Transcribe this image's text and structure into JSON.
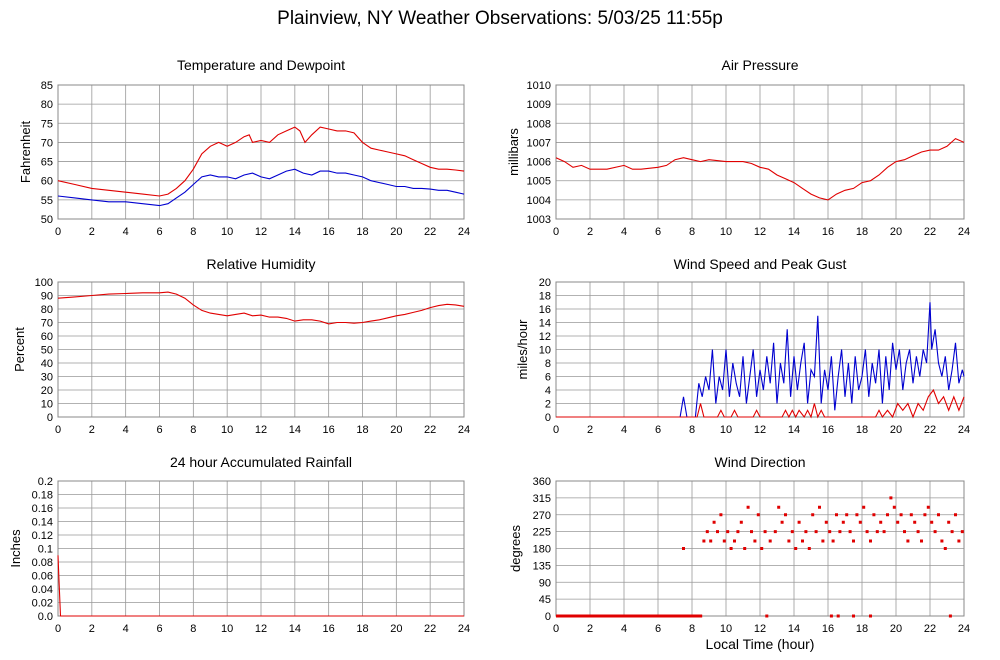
{
  "title": "Plainview, NY Weather Observations: 5/03/25 11:55p",
  "x_axis_caption": "Local Time (hour)",
  "colors": {
    "red": "#e00000",
    "blue": "#0000d0",
    "grid": "#999999",
    "frame": "#888888"
  },
  "chart_data": [
    {
      "id": "temp",
      "type": "line",
      "title": "Temperature and Dewpoint",
      "ylabel": "Fahrenheit",
      "xlabel": "",
      "xlim": [
        0,
        24
      ],
      "ylim": [
        50,
        85
      ],
      "xticks": [
        0,
        2,
        4,
        6,
        8,
        10,
        12,
        14,
        16,
        18,
        20,
        22,
        24
      ],
      "yticks": [
        "50",
        "55",
        "60",
        "65",
        "70",
        "75",
        "80",
        "85"
      ],
      "grid": true,
      "series": [
        {
          "color": "red",
          "x": [
            0,
            1,
            2,
            3,
            4,
            5,
            6,
            6.5,
            7,
            7.5,
            8,
            8.5,
            9,
            9.5,
            10,
            10.5,
            11,
            11.3,
            11.5,
            12,
            12.5,
            13,
            13.5,
            14,
            14.3,
            14.6,
            15,
            15.5,
            16,
            16.5,
            17,
            17.5,
            18,
            18.5,
            19,
            19.5,
            20,
            20.5,
            21,
            21.5,
            22,
            22.5,
            23,
            23.5,
            24
          ],
          "values": [
            60,
            59,
            58,
            57.5,
            57,
            56.5,
            56,
            56.5,
            58,
            60,
            63,
            67,
            69,
            70,
            69,
            70,
            71.5,
            72,
            70,
            70.5,
            70,
            72,
            73,
            74,
            73,
            70,
            72,
            74,
            73.5,
            73,
            73,
            72.5,
            70,
            68.5,
            68,
            67.5,
            67,
            66.5,
            65.5,
            64.5,
            63.5,
            63,
            63,
            62.8,
            62.5
          ]
        },
        {
          "color": "blue",
          "x": [
            0,
            1,
            2,
            3,
            4,
            5,
            6,
            6.5,
            7,
            7.5,
            8,
            8.5,
            9,
            9.5,
            10,
            10.5,
            11,
            11.5,
            12,
            12.5,
            13,
            13.5,
            14,
            14.5,
            15,
            15.5,
            16,
            16.5,
            17,
            17.5,
            18,
            18.5,
            19,
            19.5,
            20,
            20.5,
            21,
            21.5,
            22,
            22.5,
            23,
            23.5,
            24
          ],
          "values": [
            56,
            55.5,
            55,
            54.5,
            54.5,
            54,
            53.5,
            54,
            55.5,
            57,
            59,
            61,
            61.5,
            61,
            61,
            60.5,
            61.5,
            62,
            61,
            60.5,
            61.5,
            62.5,
            63,
            62,
            61.5,
            62.5,
            62.5,
            62,
            62,
            61.5,
            61,
            60,
            59.5,
            59,
            58.5,
            58.5,
            58,
            58,
            57.8,
            57.5,
            57.5,
            57,
            56.5
          ]
        }
      ]
    },
    {
      "id": "pressure",
      "type": "line",
      "title": "Air Pressure",
      "ylabel": "millibars",
      "xlabel": "",
      "xlim": [
        0,
        24
      ],
      "ylim": [
        1003,
        1010
      ],
      "xticks": [
        0,
        2,
        4,
        6,
        8,
        10,
        12,
        14,
        16,
        18,
        20,
        22,
        24
      ],
      "yticks": [
        "1003",
        "1004",
        "1005",
        "1006",
        "1007",
        "1008",
        "1009",
        "1010"
      ],
      "grid": true,
      "series": [
        {
          "color": "red",
          "x": [
            0,
            0.5,
            1,
            1.5,
            2,
            3,
            4,
            4.5,
            5,
            6,
            6.5,
            7,
            7.5,
            8,
            8.5,
            9,
            10,
            11,
            11.5,
            12,
            12.5,
            13,
            13.5,
            14,
            14.5,
            15,
            15.5,
            16,
            16.5,
            17,
            17.5,
            18,
            18.5,
            19,
            19.5,
            20,
            20.5,
            21,
            21.5,
            22,
            22.5,
            23,
            23.5,
            24
          ],
          "values": [
            1006.2,
            1006,
            1005.7,
            1005.8,
            1005.6,
            1005.6,
            1005.8,
            1005.6,
            1005.6,
            1005.7,
            1005.8,
            1006.1,
            1006.2,
            1006.1,
            1006,
            1006.1,
            1006,
            1006,
            1005.9,
            1005.7,
            1005.6,
            1005.3,
            1005.1,
            1004.9,
            1004.6,
            1004.3,
            1004.1,
            1004,
            1004.3,
            1004.5,
            1004.6,
            1004.9,
            1005,
            1005.3,
            1005.7,
            1006,
            1006.1,
            1006.3,
            1006.5,
            1006.6,
            1006.6,
            1006.8,
            1007.2,
            1007
          ]
        }
      ]
    },
    {
      "id": "humidity",
      "type": "line",
      "title": "Relative Humidity",
      "ylabel": "Percent",
      "xlabel": "",
      "xlim": [
        0,
        24
      ],
      "ylim": [
        0,
        100
      ],
      "xticks": [
        0,
        2,
        4,
        6,
        8,
        10,
        12,
        14,
        16,
        18,
        20,
        22,
        24
      ],
      "yticks": [
        "0",
        "10",
        "20",
        "30",
        "40",
        "50",
        "60",
        "70",
        "80",
        "90",
        "100"
      ],
      "grid": true,
      "series": [
        {
          "color": "red",
          "x": [
            0,
            1,
            2,
            3,
            4,
            5,
            6,
            6.5,
            7,
            7.5,
            8,
            8.5,
            9,
            9.5,
            10,
            10.5,
            11,
            11.5,
            12,
            12.5,
            13,
            13.5,
            14,
            14.5,
            15,
            15.5,
            16,
            16.5,
            17,
            17.5,
            18,
            18.5,
            19,
            19.5,
            20,
            20.5,
            21,
            21.5,
            22,
            22.5,
            23,
            23.5,
            24
          ],
          "values": [
            88,
            89,
            90,
            91,
            91.5,
            92,
            92,
            92.5,
            91,
            88,
            83,
            79,
            77,
            76,
            75,
            76,
            77,
            75,
            75.5,
            74,
            74,
            73,
            71,
            72,
            72,
            71,
            69,
            70,
            70,
            69.5,
            70,
            71,
            72,
            73.5,
            75,
            76,
            77.5,
            79,
            81,
            82.5,
            83.5,
            83,
            82
          ]
        }
      ]
    },
    {
      "id": "wind",
      "type": "line",
      "title": "Wind Speed and Peak Gust",
      "ylabel": "miles/hour",
      "xlabel": "",
      "xlim": [
        0,
        24
      ],
      "ylim": [
        0,
        20
      ],
      "xticks": [
        0,
        2,
        4,
        6,
        8,
        10,
        12,
        14,
        16,
        18,
        20,
        22,
        24
      ],
      "yticks": [
        "0",
        "2",
        "4",
        "6",
        "8",
        "10",
        "12",
        "14",
        "16",
        "18",
        "20"
      ],
      "grid": true,
      "series": [
        {
          "color": "blue",
          "x": [
            0,
            7.3,
            7.5,
            7.7,
            8.2,
            8.4,
            8.6,
            8.8,
            9,
            9.2,
            9.4,
            9.6,
            9.8,
            10,
            10.2,
            10.4,
            10.6,
            10.8,
            11,
            11.2,
            11.4,
            11.6,
            11.8,
            12,
            12.2,
            12.4,
            12.6,
            12.8,
            13,
            13.2,
            13.4,
            13.6,
            13.8,
            14,
            14.2,
            14.4,
            14.6,
            14.8,
            15,
            15.2,
            15.4,
            15.6,
            15.8,
            16,
            16.2,
            16.4,
            16.6,
            16.8,
            17,
            17.2,
            17.4,
            17.6,
            17.8,
            18,
            18.2,
            18.4,
            18.6,
            18.8,
            19,
            19.2,
            19.4,
            19.6,
            19.8,
            20,
            20.2,
            20.4,
            20.6,
            20.8,
            21,
            21.2,
            21.4,
            21.6,
            21.8,
            22,
            22.1,
            22.3,
            22.5,
            22.7,
            22.9,
            23.1,
            23.3,
            23.5,
            23.7,
            23.9,
            24
          ],
          "values": [
            0,
            0,
            3,
            0,
            0,
            5,
            3,
            6,
            4,
            10,
            2,
            6,
            4,
            10,
            3,
            8,
            5,
            3,
            9,
            2,
            6,
            10,
            3,
            7,
            4,
            9,
            5,
            11,
            2,
            8,
            5,
            13,
            3,
            9,
            4,
            8,
            11,
            2,
            7,
            6,
            15,
            2,
            7,
            4,
            9,
            1,
            6,
            10,
            3,
            8,
            2,
            9,
            4,
            6,
            10,
            3,
            8,
            5,
            10,
            2,
            9,
            4,
            11,
            7,
            10,
            4,
            8,
            10,
            5,
            9,
            6,
            10,
            8,
            17,
            10,
            13,
            8,
            6,
            9,
            4,
            7,
            11,
            5,
            7,
            6
          ]
        },
        {
          "color": "red",
          "x": [
            0,
            8.3,
            8.5,
            8.7,
            9.5,
            9.7,
            9.9,
            10.3,
            10.5,
            10.7,
            11.6,
            11.8,
            12,
            13.3,
            13.5,
            13.7,
            13.9,
            14.1,
            14.3,
            14.6,
            14.8,
            15,
            15.2,
            15.4,
            15.6,
            15.8,
            18.8,
            19,
            19.2,
            19.5,
            19.8,
            20.1,
            20.4,
            20.7,
            21,
            21.3,
            21.6,
            21.9,
            22.2,
            22.5,
            22.8,
            23.1,
            23.4,
            23.7,
            24
          ],
          "values": [
            0,
            0,
            2,
            0,
            0,
            1,
            0,
            0,
            1,
            0,
            0,
            1,
            0,
            0,
            1,
            0,
            1,
            0,
            1,
            0,
            1,
            0,
            2,
            0,
            1,
            0,
            0,
            1,
            0,
            1,
            0,
            2,
            1,
            2,
            0,
            2,
            1,
            3,
            4,
            2,
            3,
            1,
            3,
            1,
            3
          ]
        }
      ]
    },
    {
      "id": "rain",
      "type": "line",
      "title": "24 hour Accumulated Rainfall",
      "ylabel": "Inches",
      "xlabel": "",
      "xlim": [
        0,
        24
      ],
      "ylim": [
        0,
        0.2
      ],
      "xticks": [
        0,
        2,
        4,
        6,
        8,
        10,
        12,
        14,
        16,
        18,
        20,
        22,
        24
      ],
      "yticks": [
        "0.0",
        "0.02",
        "0.04",
        "0.06",
        "0.08",
        "0.1",
        "0.12",
        "0.14",
        "0.16",
        "0.18",
        "0.2"
      ],
      "grid": true,
      "series": [
        {
          "color": "red",
          "x": [
            0,
            0.05,
            0.15,
            24
          ],
          "values": [
            0.09,
            0.06,
            0,
            0
          ]
        }
      ]
    },
    {
      "id": "direction",
      "type": "scatter",
      "title": "Wind Direction",
      "ylabel": "degrees",
      "xlabel": "Local Time (hour)",
      "xlim": [
        0,
        24
      ],
      "ylim": [
        0,
        360
      ],
      "xticks": [
        0,
        2,
        4,
        6,
        8,
        10,
        12,
        14,
        16,
        18,
        20,
        22,
        24
      ],
      "yticks": [
        "0",
        "45",
        "90",
        "135",
        "180",
        "225",
        "270",
        "315",
        "360"
      ],
      "grid": true,
      "calm_segment": {
        "x": [
          0,
          8.6
        ],
        "value": 0,
        "color": "red"
      },
      "series": [
        {
          "color": "red",
          "x": [
            7.5,
            8.7,
            8.9,
            9.1,
            9.3,
            9.5,
            9.7,
            9.9,
            10.1,
            10.3,
            10.5,
            10.7,
            10.9,
            11.1,
            11.3,
            11.5,
            11.7,
            11.9,
            12.1,
            12.3,
            12.6,
            12.9,
            13.1,
            13.3,
            13.5,
            13.7,
            13.9,
            14.1,
            14.3,
            14.5,
            14.7,
            14.9,
            15.1,
            15.3,
            15.5,
            15.7,
            15.9,
            16.1,
            16.3,
            16.5,
            16.7,
            16.9,
            17.1,
            17.3,
            17.5,
            17.7,
            17.9,
            18.1,
            18.3,
            18.5,
            18.7,
            18.9,
            19.1,
            19.3,
            19.5,
            19.7,
            19.9,
            20.1,
            20.3,
            20.5,
            20.7,
            20.9,
            21.1,
            21.3,
            21.5,
            21.7,
            21.9,
            22.1,
            22.3,
            22.5,
            22.7,
            22.9,
            23.1,
            23.3,
            23.5,
            23.7,
            23.9,
            12.4,
            16.2,
            16.6,
            17.5,
            18.5,
            23.2
          ],
          "values": [
            180,
            200,
            225,
            200,
            250,
            225,
            270,
            200,
            225,
            180,
            200,
            225,
            250,
            180,
            290,
            225,
            200,
            270,
            180,
            225,
            200,
            225,
            290,
            250,
            270,
            200,
            225,
            180,
            250,
            200,
            225,
            180,
            270,
            225,
            290,
            200,
            250,
            225,
            200,
            270,
            225,
            250,
            270,
            225,
            200,
            270,
            250,
            290,
            225,
            200,
            270,
            225,
            250,
            225,
            270,
            315,
            290,
            250,
            270,
            225,
            200,
            270,
            250,
            225,
            200,
            270,
            290,
            250,
            225,
            270,
            200,
            180,
            250,
            225,
            270,
            200,
            225,
            0,
            0,
            0,
            0,
            0,
            0
          ]
        }
      ]
    }
  ]
}
